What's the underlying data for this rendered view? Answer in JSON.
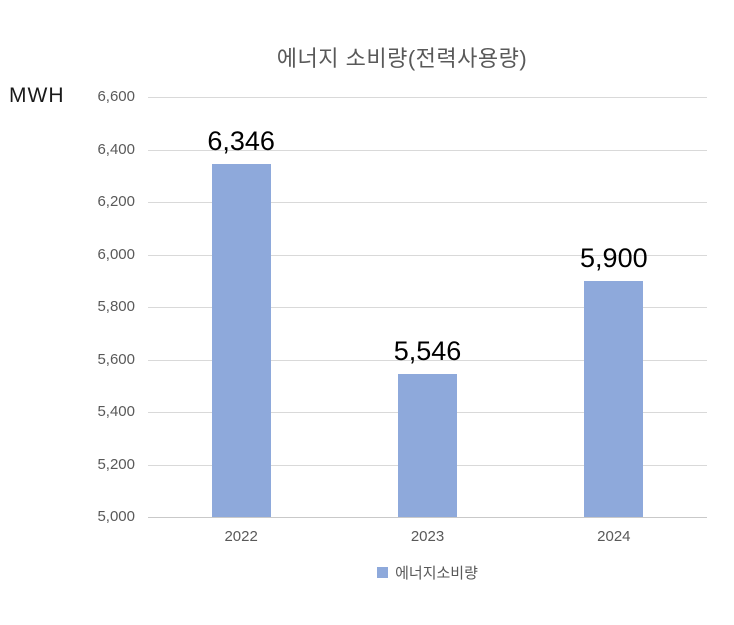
{
  "title": "에너지 소비량(전력사용량)",
  "y_axis_unit": "MWH",
  "legend": {
    "label": "에너지소비량"
  },
  "colors": {
    "bar": "#8EA9DB",
    "gridline": "#d9d9d9",
    "axis_line": "#c9c9c9",
    "muted_text": "#595959",
    "data_label_text": "#000000"
  },
  "chart_data": {
    "type": "bar",
    "title": "에너지 소비량(전력사용량)",
    "ylabel": "MWH",
    "xlabel": "",
    "categories": [
      "2022",
      "2023",
      "2024"
    ],
    "series": [
      {
        "name": "에너지소비량",
        "values": [
          6346,
          5546,
          5900
        ]
      }
    ],
    "data_labels": [
      "6,346",
      "5,546",
      "5,900"
    ],
    "ylim": [
      5000,
      6600
    ],
    "ytick_step": 200,
    "ytick_labels": [
      "6,600",
      "6,400",
      "6,200",
      "6,000",
      "5,800",
      "5,600",
      "5,400",
      "5,200",
      "5,000"
    ],
    "grid": true,
    "legend_position": "bottom"
  }
}
